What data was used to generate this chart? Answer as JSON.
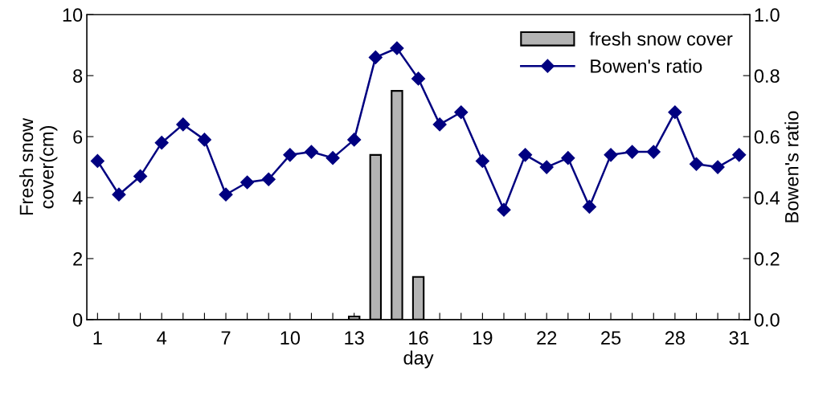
{
  "chart_data": {
    "type": "bar",
    "xlabel": "day",
    "ylabel": "Fresh snow\ncover(cm)",
    "y2label": "Bowen's ratio",
    "x": [
      1,
      2,
      3,
      4,
      5,
      6,
      7,
      8,
      9,
      10,
      11,
      12,
      13,
      14,
      15,
      16,
      17,
      18,
      19,
      20,
      21,
      22,
      23,
      24,
      25,
      26,
      27,
      28,
      29,
      30,
      31
    ],
    "series": [
      {
        "name": "fresh snow cover",
        "color": "#b4b4b4",
        "values": [
          null,
          null,
          null,
          null,
          null,
          null,
          null,
          null,
          null,
          null,
          null,
          null,
          0.1,
          5.4,
          7.5,
          1.4,
          null,
          null,
          null,
          null,
          null,
          null,
          null,
          null,
          null,
          null,
          null,
          null,
          null,
          null,
          null
        ]
      },
      {
        "name": "Bowen's ratio",
        "type": "line",
        "axis": "y2",
        "color": "#000080",
        "marker": "diamond",
        "values": [
          0.52,
          0.41,
          0.47,
          0.58,
          0.64,
          0.59,
          0.41,
          0.45,
          0.46,
          0.54,
          0.55,
          0.53,
          0.59,
          0.86,
          0.89,
          0.79,
          0.64,
          0.68,
          0.52,
          0.36,
          0.54,
          0.5,
          0.53,
          0.37,
          0.54,
          0.55,
          0.55,
          0.68,
          0.51,
          0.5,
          0.54
        ]
      }
    ],
    "xlim": [
      0.5,
      31.5
    ],
    "xticks": [
      1,
      {
        "value": 2,
        "label": null
      },
      {
        "value": 3,
        "label": null
      },
      4,
      {
        "value": 5,
        "label": null
      },
      {
        "value": 6,
        "label": null
      },
      7,
      {
        "value": 8,
        "label": null
      },
      {
        "value": 9,
        "label": null
      },
      10,
      {
        "value": 11,
        "label": null
      },
      {
        "value": 12,
        "label": null
      },
      13,
      {
        "value": 14,
        "label": null
      },
      {
        "value": 15,
        "label": null
      },
      16,
      {
        "value": 17,
        "label": null
      },
      {
        "value": 18,
        "label": null
      },
      19,
      {
        "value": 20,
        "label": null
      },
      {
        "value": 21,
        "label": null
      },
      22,
      {
        "value": 23,
        "label": null
      },
      {
        "value": 24,
        "label": null
      },
      25,
      {
        "value": 26,
        "label": null
      },
      {
        "value": 27,
        "label": null
      },
      28,
      {
        "value": 29,
        "label": null
      },
      {
        "value": 30,
        "label": null
      },
      31
    ],
    "ylim": [
      0,
      10
    ],
    "yticks": [
      0,
      2,
      4,
      6,
      8,
      10
    ],
    "y2lim": [
      0,
      1
    ],
    "y2ticks": [
      {
        "value": 0,
        "label": "0.0"
      },
      {
        "value": 0.2,
        "label": "0.2"
      },
      {
        "value": 0.4,
        "label": "0.4"
      },
      {
        "value": 0.6,
        "label": "0.6"
      },
      {
        "value": 0.8,
        "label": "0.8"
      },
      {
        "value": 1,
        "label": "1.0"
      }
    ],
    "legend": "top right",
    "grid": false
  }
}
